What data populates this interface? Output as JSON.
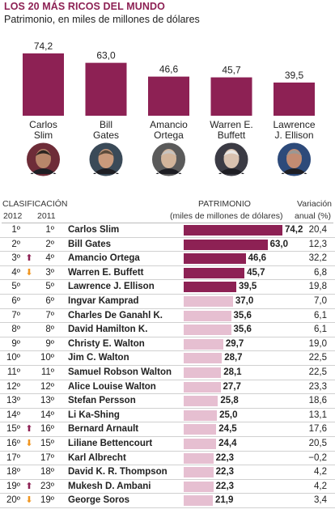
{
  "header": {
    "title": "LOS 20 MÁS RICOS DEL MUNDO",
    "subtitle": "Patrimonio, en miles de millones de dólares"
  },
  "colors": {
    "brand": "#8d2154",
    "bar_top": "#8d2154",
    "bar_light": "#e6bfd1",
    "arrow_up": "#8d2154",
    "arrow_down": "#f0951f"
  },
  "table_headers": {
    "clasificacion": "CLASIFICACIÓN",
    "year_2012": "2012",
    "year_2011": "2011",
    "patrimonio": "PATRIMONIO",
    "patrimonio_unit": "(miles de millones de dólares)",
    "variacion": "Variación",
    "variacion_unit": "anual (%)"
  },
  "chart_data": [
    {
      "type": "bar",
      "title": "",
      "categories": [
        "Carlos Slim",
        "Bill Gates",
        "Amancio Ortega",
        "Warren E. Buffett",
        "Lawrence J. Ellison"
      ],
      "category_lines": [
        [
          "Carlos",
          "Slim"
        ],
        [
          "Bill",
          "Gates"
        ],
        [
          "Amancio",
          "Ortega"
        ],
        [
          "Warren E.",
          "Buffett"
        ],
        [
          "Lawrence",
          "J. Ellison"
        ]
      ],
      "values": [
        74.2,
        63.0,
        46.6,
        45.7,
        39.5
      ],
      "value_labels": [
        "74,2",
        "63,0",
        "46,6",
        "45,7",
        "39,5"
      ],
      "ylim": [
        0,
        74.2
      ]
    },
    {
      "type": "table",
      "rows": [
        {
          "rank_2012": "1º",
          "rank_2011": "1º",
          "trend": "",
          "name": "Carlos Slim",
          "value": 74.2,
          "value_label": "74,2",
          "change": "20,4",
          "highlight": true
        },
        {
          "rank_2012": "2º",
          "rank_2011": "2º",
          "trend": "",
          "name": "Bill Gates",
          "value": 63.0,
          "value_label": "63,0",
          "change": "12,3",
          "highlight": true
        },
        {
          "rank_2012": "3º",
          "rank_2011": "4º",
          "trend": "up",
          "name": "Amancio Ortega",
          "value": 46.6,
          "value_label": "46,6",
          "change": "32,2",
          "highlight": true
        },
        {
          "rank_2012": "4º",
          "rank_2011": "3º",
          "trend": "down",
          "name": "Warren E. Buffett",
          "value": 45.7,
          "value_label": "45,7",
          "change": "6,8",
          "highlight": true
        },
        {
          "rank_2012": "5º",
          "rank_2011": "5º",
          "trend": "",
          "name": "Lawrence J. Ellison",
          "value": 39.5,
          "value_label": "39,5",
          "change": "19,8",
          "highlight": true
        },
        {
          "rank_2012": "6º",
          "rank_2011": "6º",
          "trend": "",
          "name": "Ingvar Kamprad",
          "value": 37.0,
          "value_label": "37,0",
          "change": "7,0",
          "highlight": false
        },
        {
          "rank_2012": "7º",
          "rank_2011": "7º",
          "trend": "",
          "name": "Charles De Ganahl K.",
          "value": 35.6,
          "value_label": "35,6",
          "change": "6,1",
          "highlight": false
        },
        {
          "rank_2012": "8º",
          "rank_2011": "8º",
          "trend": "",
          "name": "David Hamilton K.",
          "value": 35.6,
          "value_label": "35,6",
          "change": "6,1",
          "highlight": false
        },
        {
          "rank_2012": "9º",
          "rank_2011": "9º",
          "trend": "",
          "name": "Christy E. Walton",
          "value": 29.7,
          "value_label": "29,7",
          "change": "19,0",
          "highlight": false
        },
        {
          "rank_2012": "10º",
          "rank_2011": "10º",
          "trend": "",
          "name": "Jim C. Walton",
          "value": 28.7,
          "value_label": "28,7",
          "change": "22,5",
          "highlight": false
        },
        {
          "rank_2012": "11º",
          "rank_2011": "11º",
          "trend": "",
          "name": "Samuel Robson Walton",
          "value": 28.1,
          "value_label": "28,1",
          "change": "22,5",
          "highlight": false
        },
        {
          "rank_2012": "12º",
          "rank_2011": "12º",
          "trend": "",
          "name": "Alice Louise Walton",
          "value": 27.7,
          "value_label": "27,7",
          "change": "23,3",
          "highlight": false
        },
        {
          "rank_2012": "13º",
          "rank_2011": "13º",
          "trend": "",
          "name": "Stefan Persson",
          "value": 25.8,
          "value_label": "25,8",
          "change": "18,6",
          "highlight": false
        },
        {
          "rank_2012": "14º",
          "rank_2011": "14º",
          "trend": "",
          "name": "Li Ka-Shing",
          "value": 25.0,
          "value_label": "25,0",
          "change": "13,1",
          "highlight": false
        },
        {
          "rank_2012": "15º",
          "rank_2011": "16º",
          "trend": "up",
          "name": "Bernard Arnault",
          "value": 24.5,
          "value_label": "24,5",
          "change": "17,6",
          "highlight": false
        },
        {
          "rank_2012": "16º",
          "rank_2011": "15º",
          "trend": "down",
          "name": "Liliane Bettencourt",
          "value": 24.4,
          "value_label": "24,4",
          "change": "20,5",
          "highlight": false
        },
        {
          "rank_2012": "17º",
          "rank_2011": "17º",
          "trend": "",
          "name": "Karl Albrecht",
          "value": 22.3,
          "value_label": "22,3",
          "change": "−0,2",
          "highlight": false
        },
        {
          "rank_2012": "18º",
          "rank_2011": "18º",
          "trend": "",
          "name": "David K. R. Thompson",
          "value": 22.3,
          "value_label": "22,3",
          "change": "4,2",
          "highlight": false
        },
        {
          "rank_2012": "19º",
          "rank_2011": "23º",
          "trend": "up",
          "name": "Mukesh D. Ambani",
          "value": 22.3,
          "value_label": "22,3",
          "change": "4,2",
          "highlight": false
        },
        {
          "rank_2012": "20º",
          "rank_2011": "19º",
          "trend": "down",
          "name": "George Soros",
          "value": 21.9,
          "value_label": "21,9",
          "change": "3,4",
          "highlight": false
        }
      ],
      "xlim": [
        0,
        74.2
      ]
    }
  ]
}
